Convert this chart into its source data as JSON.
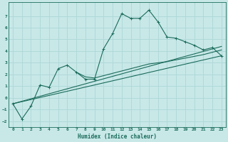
{
  "xlabel": "Humidex (Indice chaleur)",
  "ylabel": "",
  "xlim": [
    -0.5,
    23.5
  ],
  "ylim": [
    -2.5,
    8.2
  ],
  "yticks": [
    -2,
    -1,
    0,
    1,
    2,
    3,
    4,
    5,
    6,
    7
  ],
  "xticks": [
    0,
    1,
    2,
    3,
    4,
    5,
    6,
    7,
    8,
    9,
    10,
    11,
    12,
    13,
    14,
    15,
    16,
    17,
    18,
    19,
    20,
    21,
    22,
    23
  ],
  "background_color": "#c8e8e8",
  "grid_color": "#b0d8d8",
  "line_color": "#1a6b5a",
  "line1_x": [
    0,
    1,
    2,
    3,
    4,
    5,
    6,
    7,
    8,
    9,
    10,
    11,
    12,
    13,
    14,
    15,
    16,
    17,
    18,
    19,
    20,
    21,
    22,
    23
  ],
  "line1_y": [
    -0.5,
    -1.8,
    -0.7,
    1.1,
    0.9,
    2.5,
    2.8,
    2.2,
    1.6,
    1.6,
    4.2,
    5.5,
    7.2,
    6.8,
    6.8,
    7.5,
    6.5,
    5.2,
    5.1,
    4.8,
    4.5,
    4.1,
    4.3,
    3.6
  ],
  "line2_x": [
    7,
    8,
    9,
    10,
    11,
    12,
    13,
    14,
    15,
    16,
    17,
    18,
    19,
    20,
    21,
    22,
    23
  ],
  "line2_y": [
    2.2,
    1.8,
    1.7,
    1.9,
    2.1,
    2.3,
    2.5,
    2.7,
    2.9,
    3.0,
    3.1,
    3.25,
    3.4,
    3.55,
    3.7,
    3.9,
    4.1
  ],
  "line3_x": [
    0,
    23
  ],
  "line3_y": [
    -0.5,
    3.6
  ],
  "line4_x": [
    0,
    23
  ],
  "line4_y": [
    -0.5,
    4.4
  ]
}
